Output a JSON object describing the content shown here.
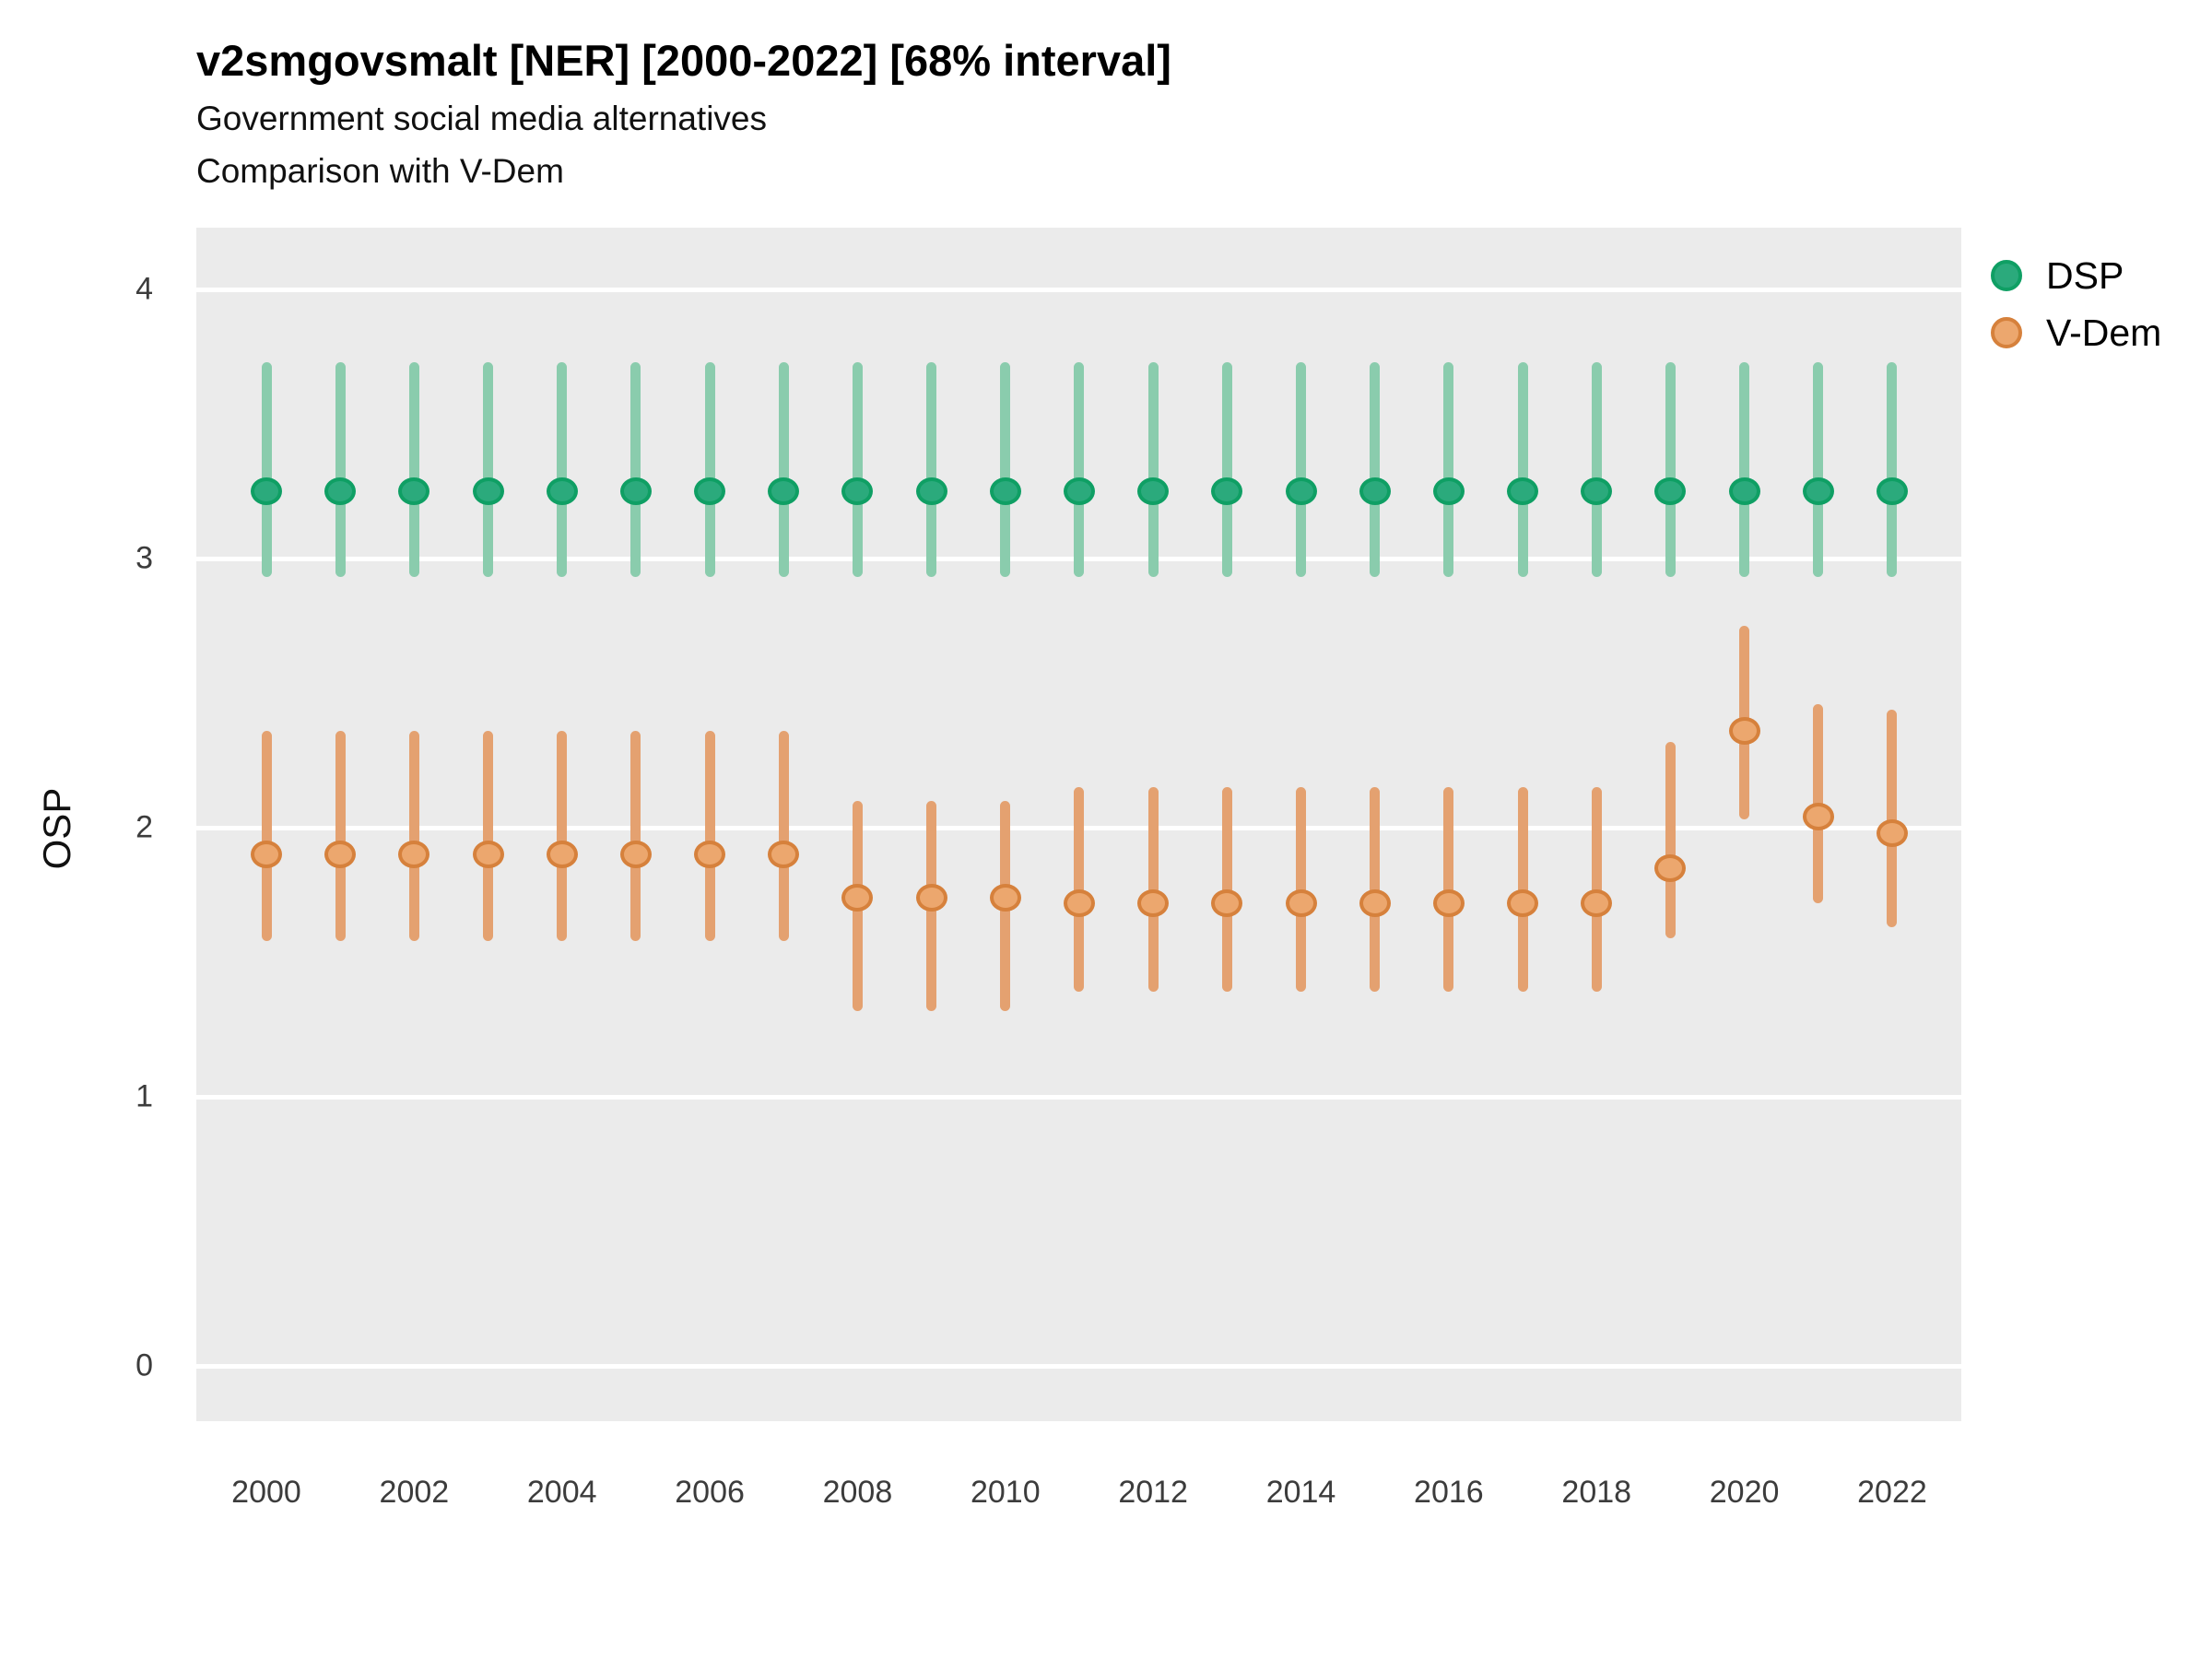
{
  "header": {
    "title": "v2smgovsmalt [NER] [2000-2022] [68% interval]",
    "subtitle1": "Government social media alternatives",
    "subtitle2": "Comparison with V-Dem"
  },
  "chart_data": {
    "type": "pointrange",
    "title": "v2smgovsmalt [NER] [2000-2022] [68% interval]",
    "interval_label": "68% interval",
    "ylabel": "OSP",
    "xlabel": "",
    "ylim": [
      -0.2,
      4.23
    ],
    "y_ticks": [
      0,
      1,
      2,
      3,
      4
    ],
    "x_ticks": [
      2000,
      2002,
      2004,
      2006,
      2008,
      2010,
      2012,
      2014,
      2016,
      2018,
      2020,
      2022
    ],
    "grid": "white major gridlines on grey panel",
    "legend_position": "top-right",
    "x": [
      2000,
      2001,
      2002,
      2003,
      2004,
      2005,
      2006,
      2007,
      2008,
      2009,
      2010,
      2011,
      2012,
      2013,
      2014,
      2015,
      2016,
      2017,
      2018,
      2019,
      2020,
      2021,
      2022
    ],
    "series": [
      {
        "name": "DSP",
        "point_color": "#2baa7c",
        "point_border_color": "#0f9f64",
        "bar_color": "#8accad",
        "values": [
          3.25,
          3.25,
          3.25,
          3.25,
          3.25,
          3.25,
          3.25,
          3.25,
          3.25,
          3.25,
          3.25,
          3.25,
          3.25,
          3.25,
          3.25,
          3.25,
          3.25,
          3.25,
          3.25,
          3.25,
          3.25,
          3.25,
          3.25
        ],
        "lower": [
          2.93,
          2.93,
          2.93,
          2.93,
          2.93,
          2.93,
          2.93,
          2.93,
          2.93,
          2.93,
          2.93,
          2.93,
          2.93,
          2.93,
          2.93,
          2.93,
          2.93,
          2.93,
          2.93,
          2.93,
          2.93,
          2.93,
          2.93
        ],
        "upper": [
          3.73,
          3.73,
          3.73,
          3.73,
          3.73,
          3.73,
          3.73,
          3.73,
          3.73,
          3.73,
          3.73,
          3.73,
          3.73,
          3.73,
          3.73,
          3.73,
          3.73,
          3.73,
          3.73,
          3.73,
          3.73,
          3.73,
          3.73
        ]
      },
      {
        "name": "V-Dem",
        "point_color": "#eca76e",
        "point_border_color": "#d6813c",
        "bar_color": "#e4a170",
        "values": [
          1.9,
          1.9,
          1.9,
          1.9,
          1.9,
          1.9,
          1.9,
          1.9,
          1.74,
          1.74,
          1.74,
          1.72,
          1.72,
          1.72,
          1.72,
          1.72,
          1.72,
          1.72,
          1.72,
          1.85,
          2.36,
          2.04,
          1.98
        ],
        "lower": [
          1.58,
          1.58,
          1.58,
          1.58,
          1.58,
          1.58,
          1.58,
          1.58,
          1.32,
          1.32,
          1.32,
          1.39,
          1.39,
          1.39,
          1.39,
          1.39,
          1.39,
          1.39,
          1.39,
          1.59,
          2.03,
          1.72,
          1.63
        ],
        "upper": [
          2.36,
          2.36,
          2.36,
          2.36,
          2.36,
          2.36,
          2.36,
          2.36,
          2.1,
          2.1,
          2.1,
          2.15,
          2.15,
          2.15,
          2.15,
          2.15,
          2.15,
          2.15,
          2.15,
          2.32,
          2.75,
          2.46,
          2.44
        ]
      }
    ]
  }
}
